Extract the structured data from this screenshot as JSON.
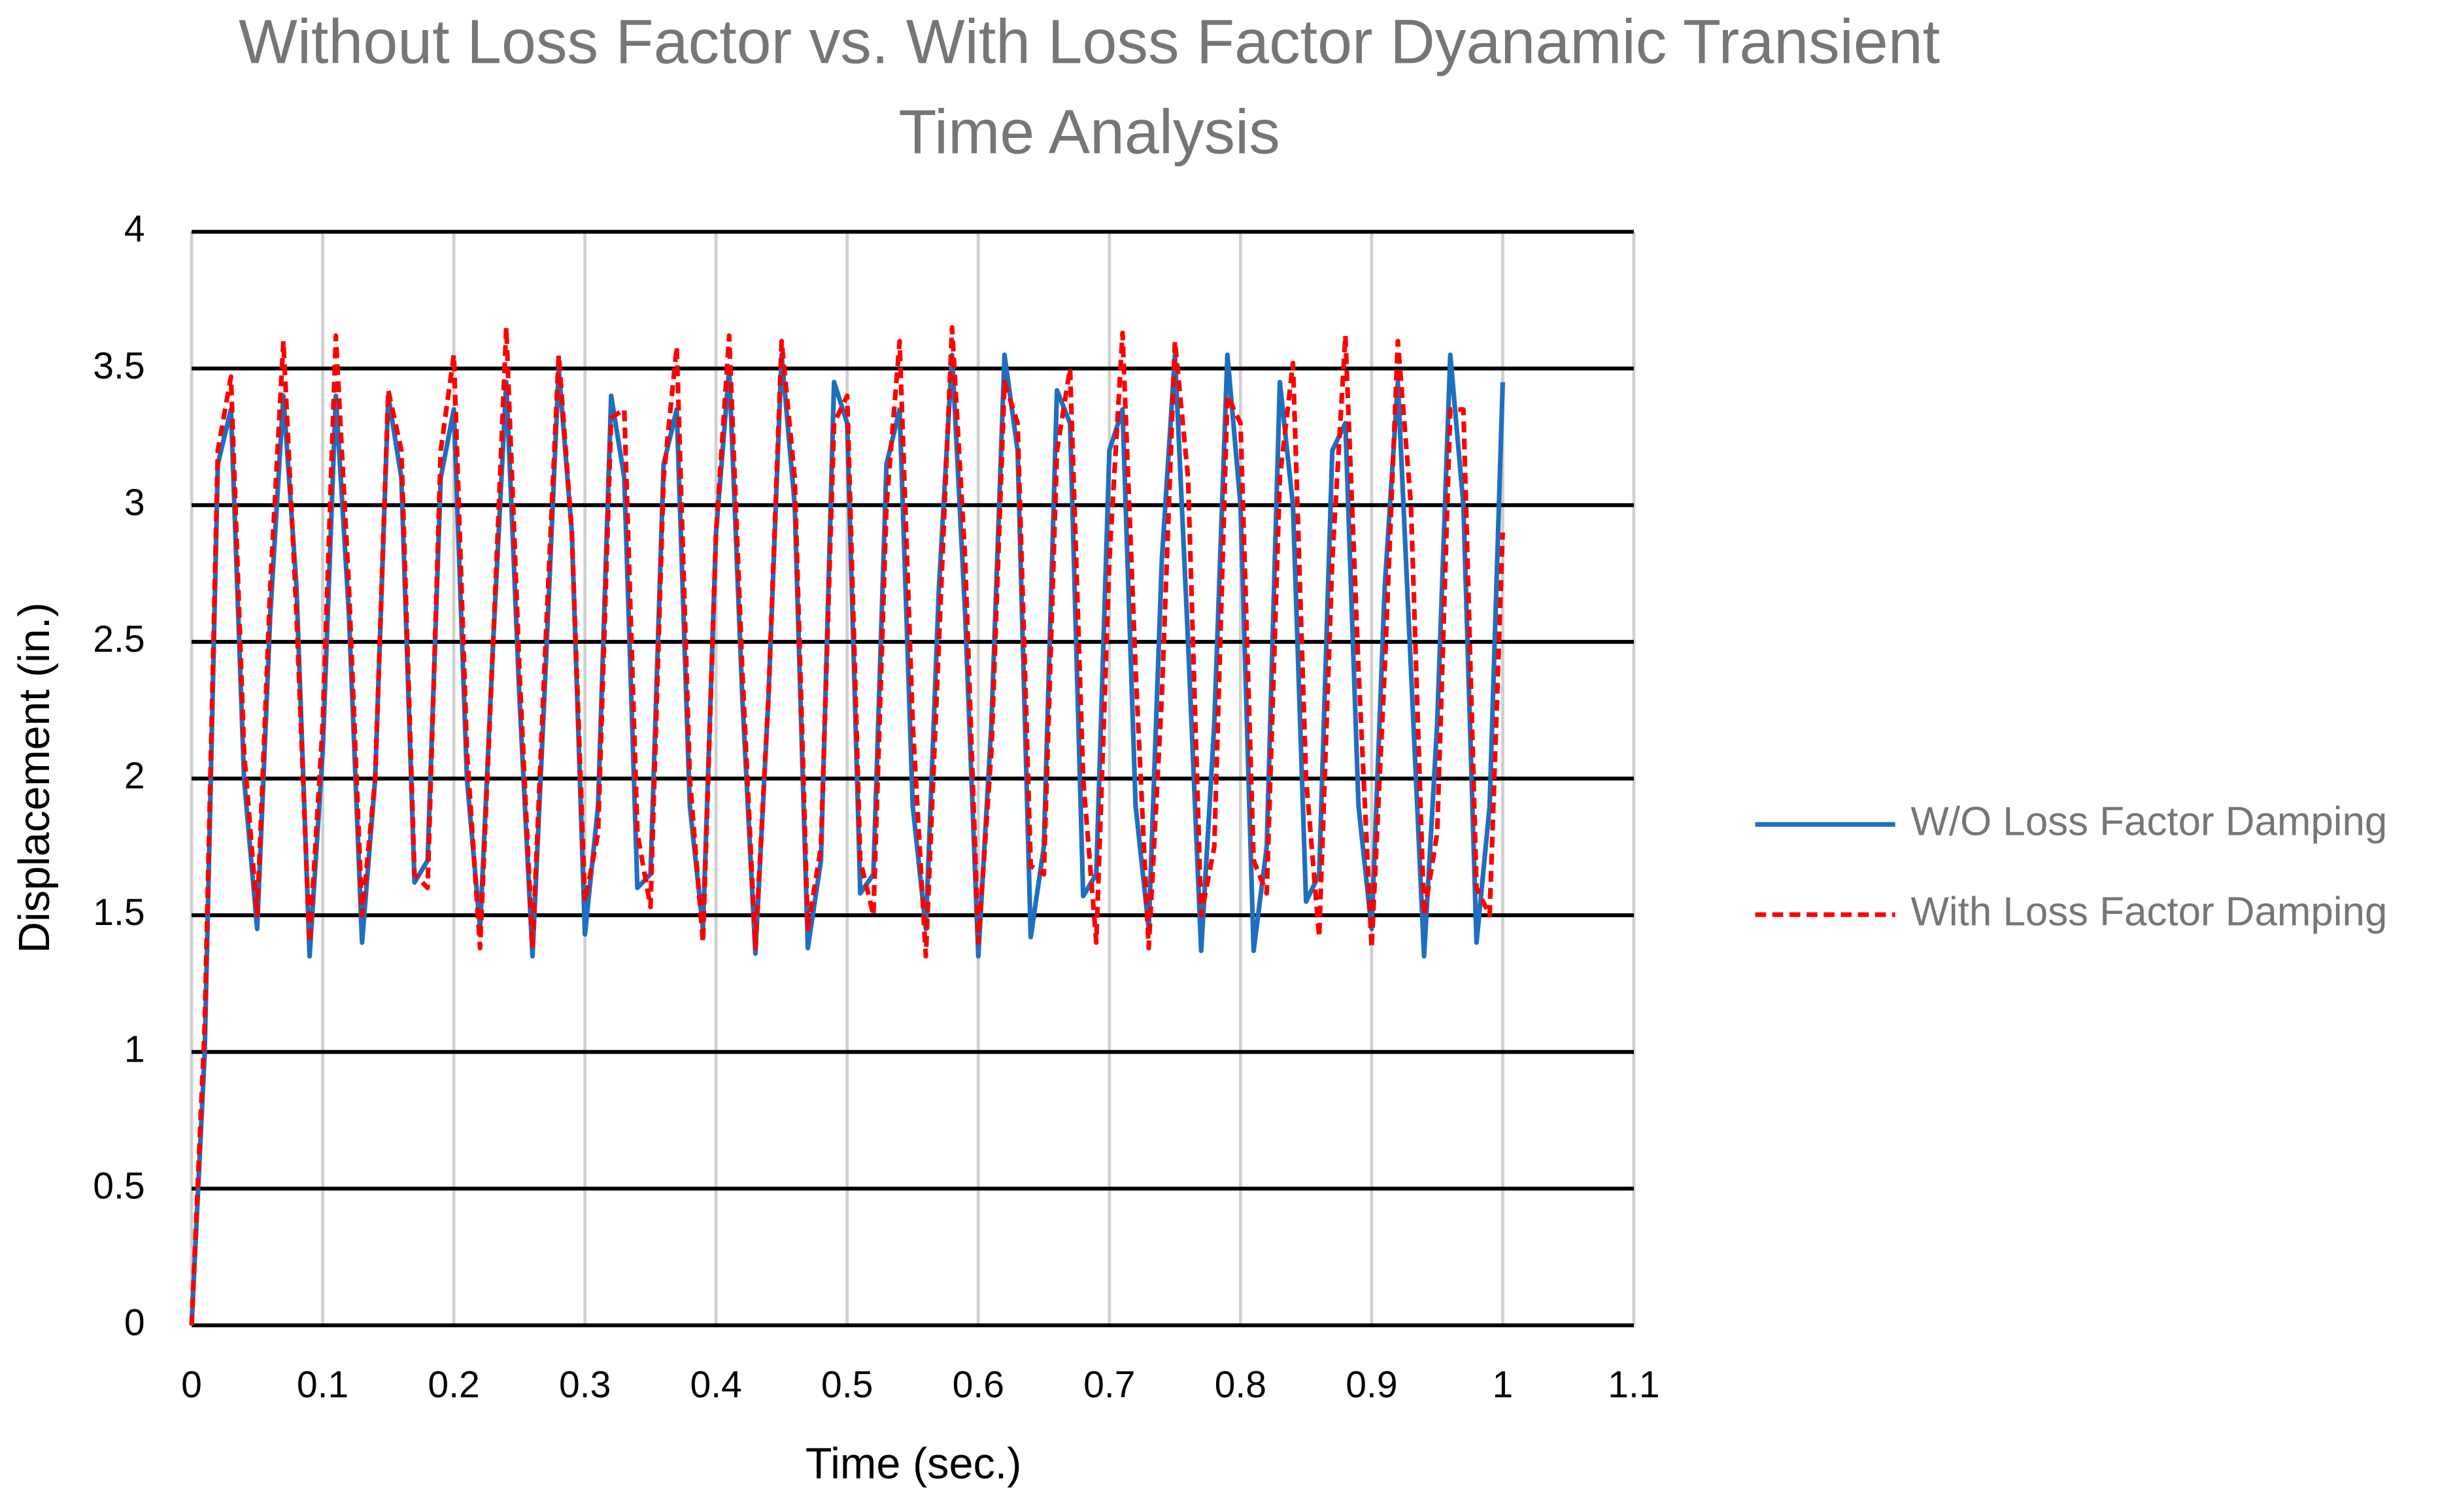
{
  "chart_data": {
    "type": "line",
    "title": [
      "Without Loss Factor vs. With Loss Factor Dyanamic Transient",
      "Time Analysis"
    ],
    "x_label": "Time (sec.)",
    "y_label": "Displacement (in.)",
    "x": [
      0,
      0.01,
      0.02,
      0.03,
      0.04,
      0.05,
      0.06,
      0.07,
      0.08,
      0.09,
      0.1,
      0.11,
      0.12,
      0.13,
      0.14,
      0.15,
      0.16,
      0.17,
      0.18,
      0.19,
      0.2,
      0.21,
      0.22,
      0.23,
      0.24,
      0.25,
      0.26,
      0.27,
      0.28,
      0.29,
      0.3,
      0.31,
      0.32,
      0.33,
      0.34,
      0.35,
      0.36,
      0.37,
      0.38,
      0.39,
      0.4,
      0.41,
      0.42,
      0.43,
      0.44,
      0.45,
      0.46,
      0.47,
      0.48,
      0.49,
      0.5,
      0.51,
      0.52,
      0.53,
      0.54,
      0.55,
      0.56,
      0.57,
      0.58,
      0.59,
      0.6,
      0.61,
      0.62,
      0.63,
      0.64,
      0.65,
      0.66,
      0.67,
      0.68,
      0.69,
      0.7,
      0.71,
      0.72,
      0.73,
      0.74,
      0.75,
      0.76,
      0.77,
      0.78,
      0.79,
      0.8,
      0.81,
      0.82,
      0.83,
      0.84,
      0.85,
      0.86,
      0.87,
      0.88,
      0.89,
      0.9,
      0.91,
      0.92,
      0.93,
      0.94,
      0.95,
      0.96,
      0.97,
      0.98,
      0.99,
      1
    ],
    "series": [
      {
        "name": "W/O Loss Factor Damping",
        "color": "#1f6fc0",
        "dash": false,
        "values": [
          0,
          1.0,
          3.15,
          3.35,
          2.0,
          1.45,
          2.6,
          3.4,
          2.7,
          1.35,
          2.1,
          3.4,
          2.6,
          1.4,
          2.0,
          3.4,
          3.1,
          1.62,
          1.7,
          3.1,
          3.35,
          2.0,
          1.45,
          2.5,
          3.45,
          2.3,
          1.35,
          2.4,
          3.5,
          2.9,
          1.43,
          1.9,
          3.4,
          3.1,
          1.6,
          1.65,
          3.15,
          3.35,
          1.9,
          1.45,
          2.9,
          3.5,
          2.3,
          1.36,
          2.3,
          3.55,
          3.0,
          1.38,
          1.7,
          3.45,
          3.3,
          1.58,
          1.65,
          3.15,
          3.35,
          1.9,
          1.45,
          2.7,
          3.55,
          2.6,
          1.35,
          2.2,
          3.55,
          3.2,
          1.42,
          1.75,
          3.42,
          3.3,
          1.57,
          1.65,
          3.2,
          3.35,
          1.9,
          1.45,
          2.8,
          3.55,
          2.5,
          1.37,
          2.2,
          3.55,
          3.0,
          1.37,
          1.75,
          3.45,
          3.0,
          1.55,
          1.65,
          3.2,
          3.3,
          1.9,
          1.45,
          2.7,
          3.45,
          2.4,
          1.35,
          2.2,
          3.55,
          3.0,
          1.4,
          1.9,
          3.45
        ]
      },
      {
        "name": "With Loss Factor Damping",
        "color": "#ff0000",
        "dash": true,
        "values": [
          0,
          1.1,
          3.2,
          3.47,
          2.1,
          1.5,
          2.7,
          3.6,
          2.6,
          1.4,
          2.2,
          3.62,
          2.7,
          1.5,
          2.0,
          3.42,
          3.2,
          1.65,
          1.6,
          3.2,
          3.55,
          2.1,
          1.38,
          2.5,
          3.65,
          2.4,
          1.38,
          2.5,
          3.55,
          2.9,
          1.55,
          1.8,
          3.32,
          3.35,
          1.8,
          1.53,
          3.1,
          3.58,
          2.0,
          1.4,
          2.9,
          3.62,
          2.4,
          1.38,
          2.3,
          3.6,
          3.1,
          1.45,
          1.75,
          3.3,
          3.4,
          1.7,
          1.5,
          3.0,
          3.6,
          2.2,
          1.35,
          2.5,
          3.65,
          2.8,
          1.4,
          2.1,
          3.45,
          3.3,
          1.68,
          1.65,
          3.2,
          3.5,
          2.0,
          1.4,
          2.8,
          3.63,
          2.4,
          1.38,
          2.3,
          3.6,
          3.1,
          1.5,
          1.75,
          3.4,
          3.3,
          1.7,
          1.58,
          3.1,
          3.52,
          2.0,
          1.42,
          2.8,
          3.62,
          2.4,
          1.38,
          2.4,
          3.6,
          3.0,
          1.5,
          1.8,
          3.35,
          3.35,
          1.6,
          1.5,
          2.9
        ]
      }
    ],
    "xlim": [
      0,
      1.1
    ],
    "xticks": [
      0,
      0.1,
      0.2,
      0.3,
      0.4,
      0.5,
      0.6,
      0.7,
      0.8,
      0.9,
      1,
      1.1
    ],
    "ylim": [
      0,
      4
    ],
    "yticks": [
      0,
      0.5,
      1,
      1.5,
      2,
      2.5,
      3,
      3.5,
      4
    ],
    "grid": true,
    "legend": "right"
  }
}
